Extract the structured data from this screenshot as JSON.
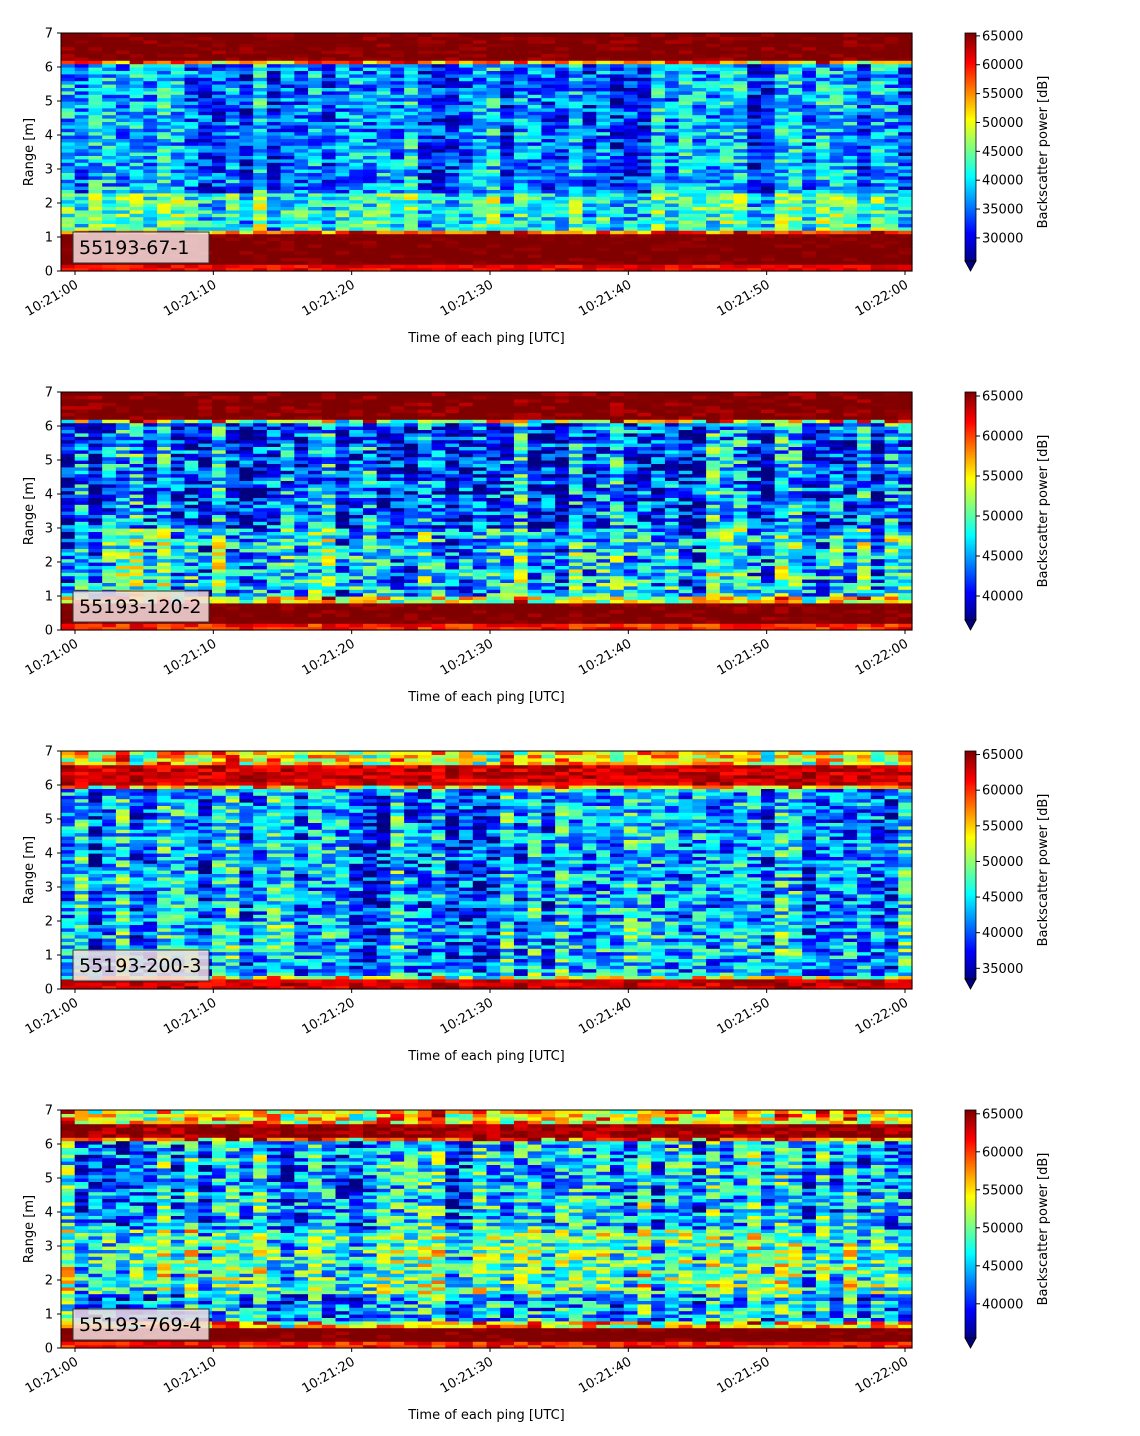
{
  "chart_data": [
    {
      "type": "heatmap",
      "label": "55193-67-1",
      "xlabel": "Time of each ping [UTC]",
      "ylabel": "Range [m]",
      "x_ticks": [
        "10:21:00",
        "10:21:10",
        "10:21:20",
        "10:21:30",
        "10:21:40",
        "10:21:50",
        "10:22:00"
      ],
      "x_range": [
        "10:21:00",
        "10:22:00"
      ],
      "y_ticks": [
        0,
        1,
        2,
        3,
        4,
        5,
        6,
        7
      ],
      "ylim": [
        0,
        7
      ],
      "colorbar": {
        "label": "Backscatter power [dB]",
        "ticks": [
          30000,
          35000,
          40000,
          45000,
          50000,
          55000,
          60000,
          65000
        ],
        "range": [
          26000,
          65500
        ],
        "colormap": "jet",
        "extend": "min"
      },
      "bands": [
        {
          "range_m": [
            0,
            0.2
          ],
          "level": 60000
        },
        {
          "range_m": [
            0.2,
            1.1
          ],
          "level": 65500
        },
        {
          "range_m": [
            1.1,
            1.25
          ],
          "level": 58000
        },
        {
          "range_m": [
            1.25,
            2.3
          ],
          "level": 42000
        },
        {
          "range_m": [
            2.3,
            6.05
          ],
          "level": 36000
        },
        {
          "range_m": [
            6.05,
            6.15
          ],
          "level": 55000
        },
        {
          "range_m": [
            6.15,
            7
          ],
          "level": 65000
        }
      ]
    },
    {
      "type": "heatmap",
      "label": "55193-120-2",
      "xlabel": "Time of each ping [UTC]",
      "ylabel": "Range [m]",
      "x_ticks": [
        "10:21:00",
        "10:21:10",
        "10:21:20",
        "10:21:30",
        "10:21:40",
        "10:21:50",
        "10:22:00"
      ],
      "x_range": [
        "10:21:00",
        "10:22:00"
      ],
      "y_ticks": [
        0,
        1,
        2,
        3,
        4,
        5,
        6,
        7
      ],
      "ylim": [
        0,
        7
      ],
      "colorbar": {
        "label": "Backscatter power [dB]",
        "ticks": [
          40000,
          45000,
          50000,
          55000,
          60000,
          65000
        ],
        "range": [
          37000,
          65500
        ],
        "colormap": "jet",
        "extend": "min"
      },
      "bands": [
        {
          "range_m": [
            0,
            0.2
          ],
          "level": 60000
        },
        {
          "range_m": [
            0.2,
            0.85
          ],
          "level": 65500
        },
        {
          "range_m": [
            0.85,
            1.0
          ],
          "level": 55000
        },
        {
          "range_m": [
            1.0,
            3.0
          ],
          "level": 47000
        },
        {
          "range_m": [
            3.0,
            6.05
          ],
          "level": 43000
        },
        {
          "range_m": [
            6.05,
            6.15
          ],
          "level": 55000
        },
        {
          "range_m": [
            6.15,
            7
          ],
          "level": 65000
        }
      ]
    },
    {
      "type": "heatmap",
      "label": "55193-200-3",
      "xlabel": "Time of each ping [UTC]",
      "ylabel": "Range [m]",
      "x_ticks": [
        "10:21:00",
        "10:21:10",
        "10:21:20",
        "10:21:30",
        "10:21:40",
        "10:21:50",
        "10:22:00"
      ],
      "x_range": [
        "10:21:00",
        "10:22:00"
      ],
      "y_ticks": [
        0,
        1,
        2,
        3,
        4,
        5,
        6,
        7
      ],
      "ylim": [
        0,
        7
      ],
      "colorbar": {
        "label": "Backscatter power [dB]",
        "ticks": [
          35000,
          40000,
          45000,
          50000,
          55000,
          60000,
          65000
        ],
        "range": [
          33500,
          65500
        ],
        "colormap": "jet",
        "extend": "min"
      },
      "bands": [
        {
          "range_m": [
            0,
            0.3
          ],
          "level": 62000
        },
        {
          "range_m": [
            0.3,
            0.4
          ],
          "level": 52000
        },
        {
          "range_m": [
            0.4,
            2.0
          ],
          "level": 43000
        },
        {
          "range_m": [
            2.0,
            5.85
          ],
          "level": 42000
        },
        {
          "range_m": [
            5.85,
            5.95
          ],
          "level": 55000
        },
        {
          "range_m": [
            5.95,
            6.6
          ],
          "level": 62000
        },
        {
          "range_m": [
            6.6,
            7
          ],
          "level": 53000
        }
      ]
    },
    {
      "type": "heatmap",
      "label": "55193-769-4",
      "xlabel": "Time of each ping [UTC]",
      "ylabel": "Range [m]",
      "x_ticks": [
        "10:21:00",
        "10:21:10",
        "10:21:20",
        "10:21:30",
        "10:21:40",
        "10:21:50",
        "10:22:00"
      ],
      "x_range": [
        "10:21:00",
        "10:22:00"
      ],
      "y_ticks": [
        0,
        1,
        2,
        3,
        4,
        5,
        6,
        7
      ],
      "ylim": [
        0,
        7
      ],
      "colorbar": {
        "label": "Backscatter power [dB]",
        "ticks": [
          40000,
          45000,
          50000,
          55000,
          60000,
          65000
        ],
        "range": [
          35500,
          65500
        ],
        "colormap": "jet",
        "extend": "min"
      },
      "bands": [
        {
          "range_m": [
            0,
            0.2
          ],
          "level": 60000
        },
        {
          "range_m": [
            0.2,
            0.65
          ],
          "level": 65500
        },
        {
          "range_m": [
            0.65,
            0.8
          ],
          "level": 55000
        },
        {
          "range_m": [
            0.8,
            1.6
          ],
          "level": 44000
        },
        {
          "range_m": [
            1.6,
            3.5
          ],
          "level": 49000
        },
        {
          "range_m": [
            3.5,
            6.1
          ],
          "level": 45000
        },
        {
          "range_m": [
            6.1,
            6.2
          ],
          "level": 58000
        },
        {
          "range_m": [
            6.2,
            6.6
          ],
          "level": 64000
        },
        {
          "range_m": [
            6.6,
            7
          ],
          "level": 55000
        }
      ]
    }
  ]
}
